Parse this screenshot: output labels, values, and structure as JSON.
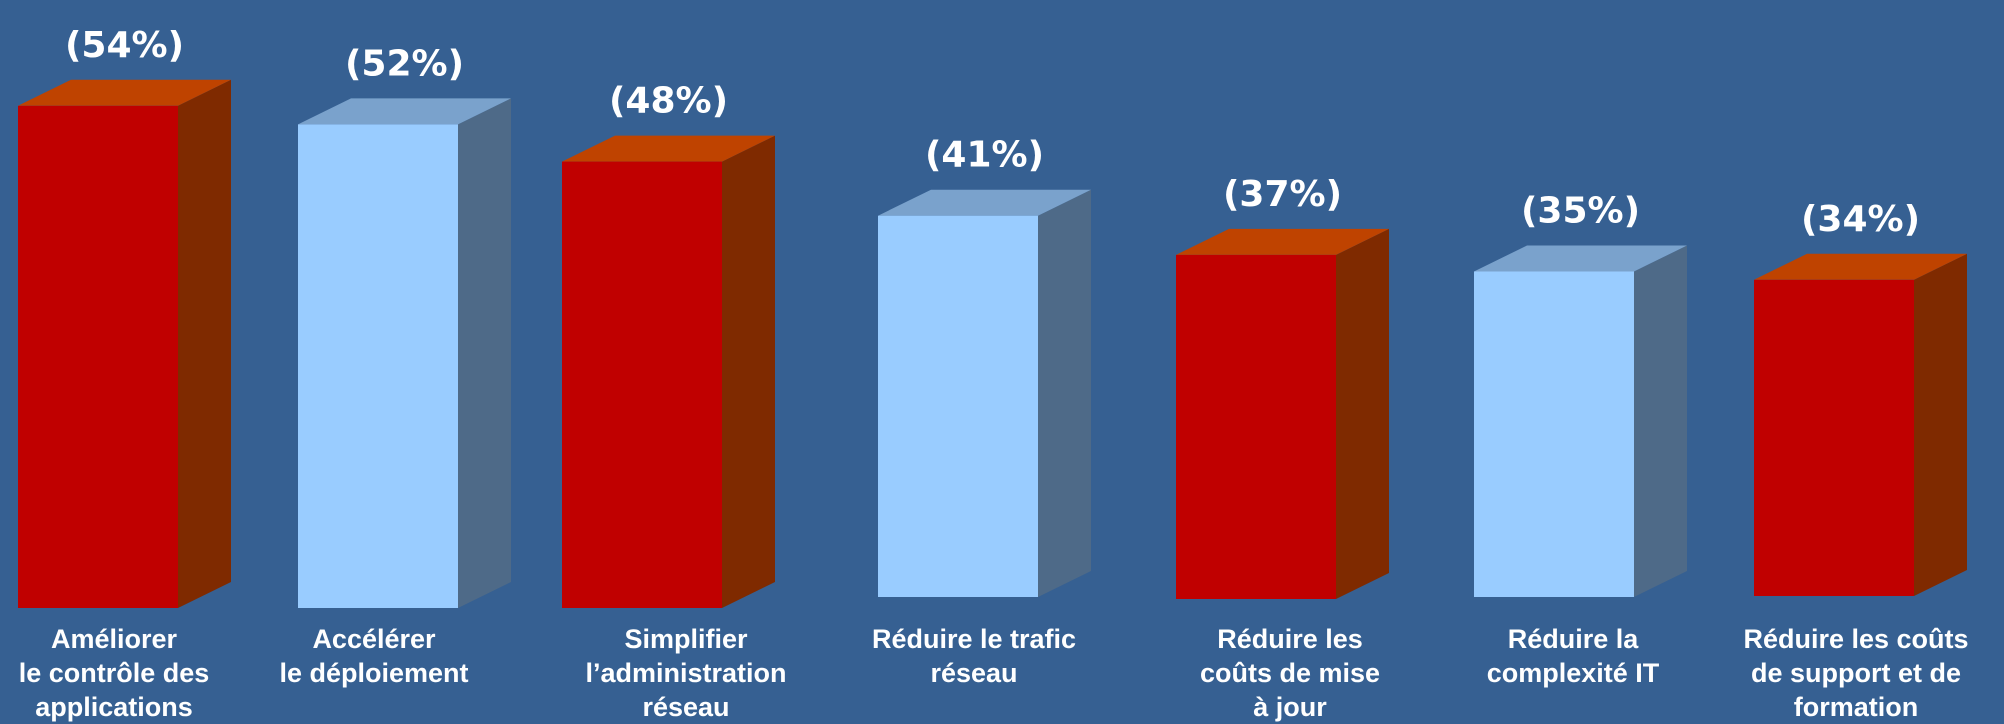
{
  "chart_data": {
    "type": "bar",
    "title": "",
    "xlabel": "",
    "ylabel": "",
    "ylim": [
      0,
      60
    ],
    "categories": [
      [
        "Améliorer",
        "le contrôle des",
        "applications"
      ],
      [
        "Accélérer",
        "le déploiement"
      ],
      [
        "Simplifier",
        "l’administration",
        "réseau"
      ],
      [
        "Réduire le trafic",
        "réseau"
      ],
      [
        "Réduire les",
        "coûts de mise",
        "à jour"
      ],
      [
        "Réduire la",
        "complexité IT"
      ],
      [
        "Réduire les coûts",
        "de support et de",
        "formation"
      ]
    ],
    "values": [
      54,
      52,
      48,
      41,
      37,
      35,
      34
    ],
    "data_labels": [
      "(54%)",
      "(52%)",
      "(48%)",
      "(41%)",
      "(37%)",
      "(35%)",
      "(34%)"
    ],
    "colors": [
      "red",
      "blue",
      "red",
      "blue",
      "red",
      "blue",
      "red"
    ],
    "palette": {
      "red": {
        "front": "#c00000",
        "side": "#7f2a00",
        "top": "#bf4300"
      },
      "blue": {
        "front": "#99ccff",
        "side": "#4e6a88",
        "top": "#7aa2cc"
      }
    },
    "background": "#366092",
    "grid": false,
    "legend": "none"
  }
}
